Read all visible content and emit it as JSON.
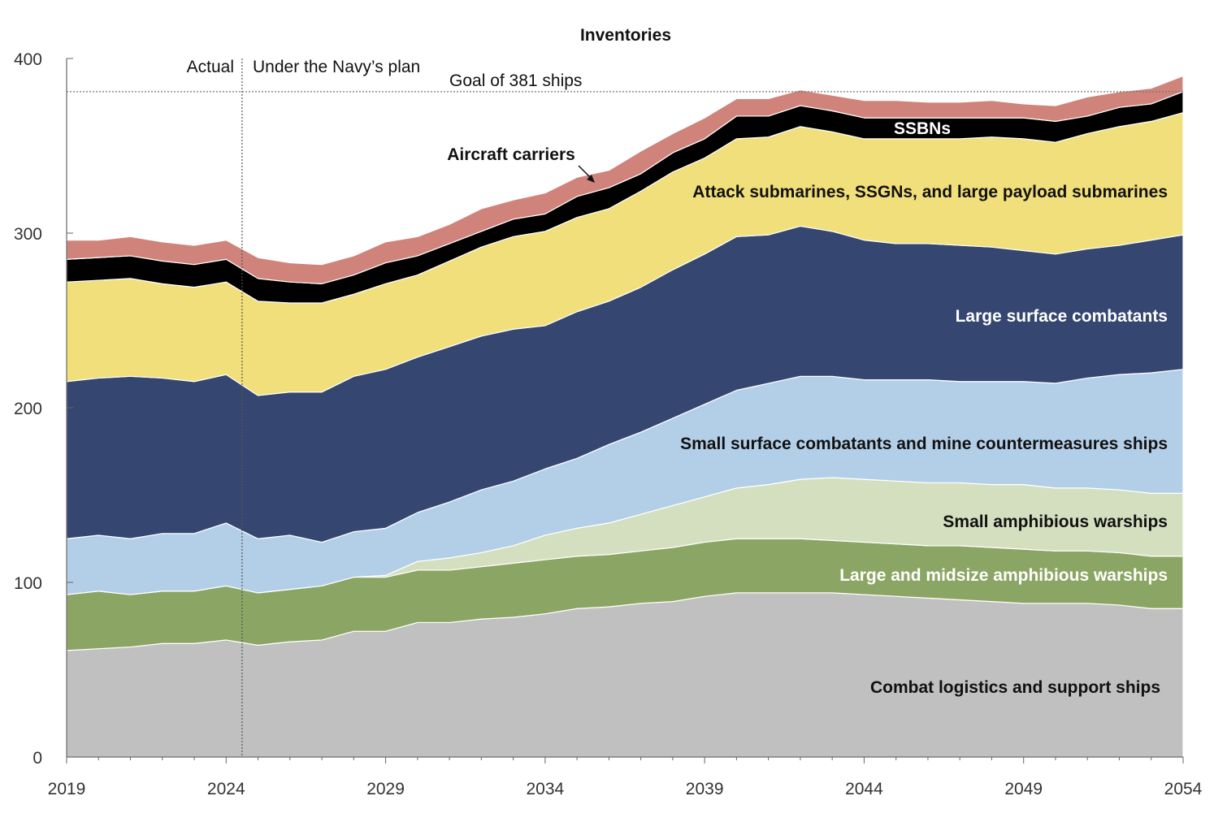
{
  "chart_data": {
    "type": "area",
    "stacked": true,
    "title": "Inventories",
    "xlabel": "",
    "ylabel": "",
    "xlim": [
      2019,
      2054
    ],
    "ylim": [
      0,
      400
    ],
    "grid": false,
    "x_ticks": [
      "2019",
      "2024",
      "2029",
      "2034",
      "2039",
      "2044",
      "2049",
      "2054"
    ],
    "y_ticks": [
      "0",
      "100",
      "200",
      "300",
      "400"
    ],
    "x": [
      2019,
      2020,
      2021,
      2022,
      2023,
      2024,
      2025,
      2026,
      2027,
      2028,
      2029,
      2030,
      2031,
      2032,
      2033,
      2034,
      2035,
      2036,
      2037,
      2038,
      2039,
      2040,
      2041,
      2042,
      2043,
      2044,
      2045,
      2046,
      2047,
      2048,
      2049,
      2050,
      2051,
      2052,
      2053,
      2054
    ],
    "series": [
      {
        "name": "Combat logistics and support ships",
        "color": "#c0c0c0",
        "label_color": "#111111",
        "values": [
          61,
          62,
          63,
          65,
          65,
          67,
          64,
          66,
          67,
          72,
          72,
          77,
          77,
          79,
          80,
          82,
          85,
          86,
          88,
          89,
          92,
          94,
          94,
          94,
          94,
          93,
          92,
          91,
          90,
          89,
          88,
          88,
          88,
          87,
          85,
          85
        ]
      },
      {
        "name": "Large and midsize amphibious warships",
        "color": "#8ba664",
        "label_color": "#ffffff",
        "values": [
          32,
          33,
          30,
          30,
          30,
          31,
          30,
          30,
          31,
          31,
          31,
          30,
          30,
          30,
          31,
          31,
          30,
          30,
          30,
          31,
          31,
          31,
          31,
          31,
          30,
          30,
          30,
          30,
          31,
          31,
          31,
          30,
          30,
          30,
          30,
          30
        ]
      },
      {
        "name": "Small amphibious warships",
        "color": "#d4dfbf",
        "label_color": "#111111",
        "values": [
          0,
          0,
          0,
          0,
          0,
          0,
          0,
          0,
          0,
          0,
          1,
          5,
          7,
          8,
          10,
          14,
          16,
          18,
          21,
          24,
          26,
          29,
          31,
          34,
          36,
          36,
          36,
          36,
          36,
          36,
          37,
          36,
          36,
          36,
          36,
          36
        ]
      },
      {
        "name": "Small surface combatants and mine countermeasures ships",
        "color": "#b3cfe8",
        "label_color": "#111111",
        "values": [
          32,
          32,
          32,
          33,
          33,
          36,
          31,
          31,
          25,
          26,
          27,
          28,
          32,
          36,
          37,
          38,
          40,
          45,
          47,
          50,
          53,
          56,
          58,
          59,
          58,
          57,
          58,
          59,
          58,
          59,
          59,
          60,
          63,
          66,
          69,
          71
        ]
      },
      {
        "name": "Large surface combatants",
        "color": "#354670",
        "label_color": "#ffffff",
        "values": [
          90,
          90,
          93,
          89,
          87,
          85,
          82,
          82,
          86,
          89,
          91,
          89,
          89,
          88,
          87,
          82,
          84,
          82,
          83,
          85,
          86,
          88,
          85,
          86,
          83,
          80,
          78,
          78,
          78,
          77,
          75,
          74,
          74,
          74,
          76,
          77
        ]
      },
      {
        "name": "Attack submarines, SSGNs, and large payload submarines",
        "color": "#f0df7a",
        "label_color": "#111111",
        "values": [
          57,
          56,
          56,
          54,
          54,
          53,
          54,
          51,
          51,
          47,
          49,
          47,
          49,
          51,
          53,
          54,
          54,
          53,
          55,
          56,
          55,
          56,
          56,
          57,
          57,
          58,
          60,
          60,
          61,
          63,
          64,
          64,
          66,
          68,
          68,
          70
        ]
      },
      {
        "name": "SSBNs",
        "color": "#000000",
        "label_color": "#ffffff",
        "values": [
          13,
          13,
          13,
          13,
          13,
          13,
          13,
          12,
          11,
          11,
          12,
          11,
          10,
          9,
          10,
          10,
          12,
          12,
          10,
          11,
          11,
          13,
          12,
          12,
          12,
          12,
          12,
          12,
          12,
          11,
          12,
          12,
          10,
          11,
          10,
          12
        ]
      },
      {
        "name": "Aircraft carriers",
        "color": "#d0837a",
        "label_color": "#111111",
        "values": [
          11,
          10,
          11,
          11,
          11,
          11,
          12,
          11,
          11,
          11,
          12,
          11,
          11,
          13,
          11,
          12,
          11,
          10,
          13,
          11,
          12,
          10,
          10,
          9,
          9,
          10,
          10,
          9,
          9,
          10,
          8,
          9,
          11,
          9,
          9,
          9
        ]
      }
    ],
    "annotations": {
      "actual": "Actual",
      "plan": "Under the Navy’s plan",
      "goal": "Goal of 381 ships",
      "goal_value": 381,
      "divider_year": 2024.5
    }
  }
}
